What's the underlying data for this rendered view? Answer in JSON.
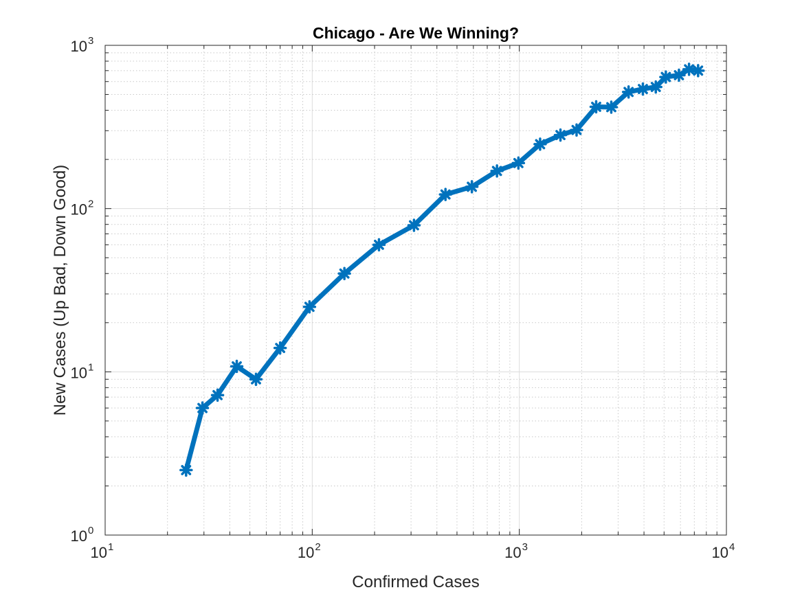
{
  "chart_data": {
    "type": "line",
    "title": "Chicago - Are We Winning?",
    "xlabel": "Confirmed Cases",
    "ylabel": "New Cases (Up Bad, Down Good)",
    "x_scale": "log",
    "y_scale": "log",
    "xlim": [
      10,
      10000
    ],
    "ylim": [
      1,
      1000
    ],
    "grid": true,
    "legend": "none",
    "x_ticks": [
      {
        "base": "10",
        "exp": "1",
        "value": 10
      },
      {
        "base": "10",
        "exp": "2",
        "value": 100
      },
      {
        "base": "10",
        "exp": "3",
        "value": 1000
      },
      {
        "base": "10",
        "exp": "4",
        "value": 10000
      }
    ],
    "y_ticks": [
      {
        "base": "10",
        "exp": "0",
        "value": 1
      },
      {
        "base": "10",
        "exp": "1",
        "value": 10
      },
      {
        "base": "10",
        "exp": "2",
        "value": 100
      },
      {
        "base": "10",
        "exp": "3",
        "value": 1000
      }
    ],
    "series": [
      {
        "color": "#0072BD",
        "marker": "asterisk",
        "x": [
          24.6,
          29.5,
          34.9,
          43.2,
          53.5,
          70,
          97,
          143,
          210,
          310,
          440,
          590,
          780,
          990,
          1260,
          1580,
          1890,
          2350,
          2780,
          3370,
          3950,
          4560,
          5100,
          5900,
          6600,
          7300
        ],
        "y": [
          2.5,
          6.0,
          7.2,
          10.8,
          9.0,
          14.0,
          25.0,
          40.0,
          60.0,
          79.0,
          122.0,
          136.0,
          170.0,
          190.0,
          248.0,
          282.0,
          303.0,
          420.0,
          418.0,
          518.0,
          540.0,
          556.0,
          640.0,
          656.0,
          713.0,
          700.0
        ]
      }
    ]
  }
}
